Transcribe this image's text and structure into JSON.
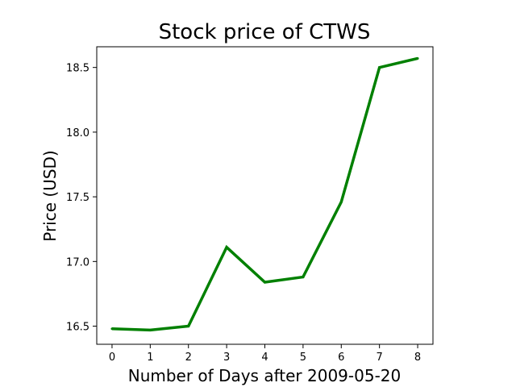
{
  "chart_data": {
    "type": "line",
    "title": "Stock price of CTWS",
    "xlabel": "Number of Days after 2009-05-20",
    "ylabel": "Price (USD)",
    "x": [
      0,
      1,
      2,
      3,
      4,
      5,
      6,
      7,
      8
    ],
    "x_tick_labels": [
      "0",
      "1",
      "2",
      "3",
      "4",
      "5",
      "6",
      "7",
      "8"
    ],
    "y_ticks": [
      16.5,
      17.0,
      17.5,
      18.0,
      18.5
    ],
    "y_tick_labels": [
      "16.5",
      "17.0",
      "17.5",
      "18.0",
      "18.5"
    ],
    "xlim": [
      -0.4,
      8.4
    ],
    "ylim": [
      16.36,
      18.66
    ],
    "grid": false,
    "series": [
      {
        "color": "#008000",
        "values": [
          16.48,
          16.47,
          16.5,
          17.11,
          16.84,
          16.88,
          17.46,
          18.5,
          18.57
        ]
      }
    ]
  }
}
